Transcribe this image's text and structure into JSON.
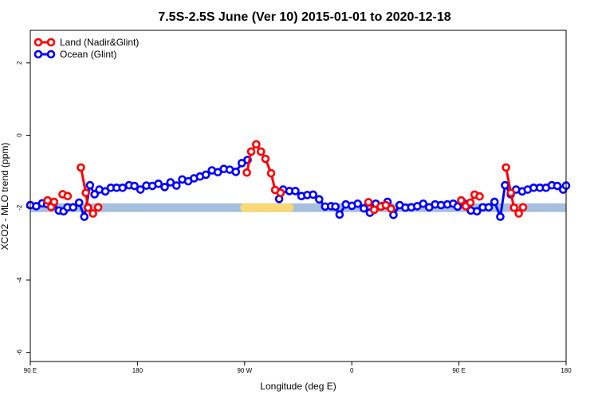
{
  "chart_data": {
    "type": "line",
    "title": "7.5S-2.5S June (Ver 10)   2015-01-01 to 2020-12-18",
    "xlabel": "Longitude (deg E)",
    "ylabel": "XCO2 - MLO trend (ppm)",
    "xlim": [
      90,
      450
    ],
    "ylim": [
      -6.25,
      2.9
    ],
    "x_ticks": [
      {
        "value": 90,
        "label": "90 E"
      },
      {
        "value": 162,
        "label": "180"
      },
      {
        "value": 234,
        "label": "90 W"
      },
      {
        "value": 306,
        "label": "0"
      },
      {
        "value": 378,
        "label": "90 E"
      },
      {
        "value": 450,
        "label": "180"
      }
    ],
    "y_ticks": [
      {
        "value": 2,
        "label": "2"
      },
      {
        "value": 0,
        "label": "0"
      },
      {
        "value": -2,
        "label": "-2"
      },
      {
        "value": -4,
        "label": "-4"
      },
      {
        "value": -6,
        "label": "-6"
      }
    ],
    "legend_position": "top-left",
    "band": {
      "y": -2.0,
      "color": "#a7bfdf",
      "highlight": {
        "x_start": 234,
        "x_end": 264,
        "color": "#f8d978"
      }
    },
    "series": [
      {
        "name": "Land (Nadir&Glint)",
        "color": "#ff0000",
        "segments": [
          [
            [
              101.6,
              -1.8
            ],
            [
              104.0,
              -1.98
            ],
            [
              106.0,
              -1.84
            ]
          ],
          [
            [
              111.7,
              -1.63
            ],
            [
              115.1,
              -1.68
            ]
          ],
          [
            [
              124.0,
              -0.89
            ],
            [
              127.3,
              -1.59
            ],
            [
              128.8,
              -2.0
            ],
            [
              132.1,
              -2.16
            ],
            [
              135.6,
              -1.99
            ]
          ],
          [
            [
              235.5,
              -1.03
            ],
            [
              238.4,
              -0.45
            ],
            [
              241.8,
              -0.25
            ],
            [
              245.0,
              -0.45
            ],
            [
              248.0,
              -0.65
            ],
            [
              251.8,
              -1.05
            ],
            [
              254.5,
              -1.51
            ],
            [
              258.2,
              -1.59
            ]
          ],
          [
            [
              317.2,
              -1.85
            ],
            [
              321.1,
              -2.06
            ],
            [
              325.4,
              -1.97
            ],
            [
              328.9,
              -1.93
            ],
            [
              332.4,
              -2.03
            ]
          ],
          [
            [
              379.5,
              -1.8
            ],
            [
              382.6,
              -1.96
            ],
            [
              385.7,
              -1.86
            ],
            [
              388.5,
              -1.64
            ],
            [
              391.9,
              -1.69
            ]
          ],
          [
            [
              409.6,
              -0.89
            ],
            [
              412.9,
              -1.59
            ],
            [
              415.0,
              -2.0
            ],
            [
              418.2,
              -2.16
            ],
            [
              421.1,
              -1.99
            ]
          ]
        ]
      },
      {
        "name": "Ocean (Glint)",
        "color": "#0000ff",
        "segments": [
          [
            [
              90.0,
              -1.93
            ],
            [
              94.0,
              -1.96
            ],
            [
              98.0,
              -1.88
            ],
            [
              101.3,
              -1.9
            ],
            [
              105.5,
              -1.88
            ],
            [
              109.2,
              -2.08
            ],
            [
              112.4,
              -2.1
            ],
            [
              115.0,
              -1.99
            ],
            [
              118.8,
              -1.99
            ],
            [
              122.8,
              -1.86
            ],
            [
              126.3,
              -2.25
            ],
            [
              130.1,
              -1.38
            ],
            [
              133.2,
              -1.63
            ],
            [
              136.4,
              -1.5
            ],
            [
              140.4,
              -1.55
            ],
            [
              144.1,
              -1.45
            ],
            [
              148.0,
              -1.45
            ],
            [
              152.0,
              -1.45
            ],
            [
              156.4,
              -1.38
            ],
            [
              160.0,
              -1.4
            ],
            [
              164.0,
              -1.5
            ],
            [
              168.0,
              -1.39
            ],
            [
              172.0,
              -1.4
            ],
            [
              176.1,
              -1.34
            ],
            [
              180.3,
              -1.43
            ],
            [
              184.2,
              -1.3
            ],
            [
              188.2,
              -1.39
            ],
            [
              192.1,
              -1.22
            ],
            [
              196.1,
              -1.27
            ],
            [
              200.0,
              -1.19
            ],
            [
              204.0,
              -1.14
            ],
            [
              208.0,
              -1.09
            ],
            [
              212.0,
              -0.97
            ],
            [
              216.0,
              -1.02
            ],
            [
              220.0,
              -0.93
            ],
            [
              224.0,
              -0.95
            ],
            [
              228.1,
              -1.01
            ],
            [
              232.1,
              -0.77
            ],
            [
              236.0,
              -0.68
            ]
          ],
          [
            [
              257.2,
              -1.76
            ],
            [
              259.9,
              -1.5
            ],
            [
              264.1,
              -1.54
            ],
            [
              268.1,
              -1.54
            ],
            [
              272.2,
              -1.68
            ],
            [
              276.1,
              -1.65
            ],
            [
              280.0,
              -1.64
            ],
            [
              284.1,
              -1.77
            ],
            [
              288.1,
              -1.97
            ],
            [
              292.1,
              -1.96
            ],
            [
              295.0,
              -1.97
            ],
            [
              297.8,
              -2.19
            ],
            [
              302.0,
              -1.91
            ],
            [
              306.1,
              -1.95
            ],
            [
              310.0,
              -1.89
            ],
            [
              314.1,
              -2.02
            ],
            [
              318.2,
              -2.14
            ],
            [
              322.1,
              -1.89
            ],
            [
              326.1,
              -1.96
            ],
            [
              330.0,
              -1.84
            ],
            [
              334.0,
              -2.2
            ],
            [
              338.2,
              -1.93
            ],
            [
              342.0,
              -2.0
            ],
            [
              346.0,
              -1.99
            ],
            [
              350.0,
              -1.96
            ],
            [
              354.0,
              -1.89
            ],
            [
              358.0,
              -1.99
            ],
            [
              362.0,
              -1.91
            ],
            [
              366.0,
              -1.93
            ],
            [
              370.2,
              -1.91
            ],
            [
              374.2,
              -1.89
            ],
            [
              377.1,
              -1.97
            ],
            [
              381.0,
              -1.87
            ],
            [
              386.0,
              -2.08
            ],
            [
              390.1,
              -2.1
            ],
            [
              394.0,
              -1.99
            ],
            [
              398.0,
              -1.99
            ],
            [
              401.9,
              -1.84
            ],
            [
              405.8,
              -2.25
            ],
            [
              409.0,
              -1.38
            ],
            [
              412.8,
              -1.63
            ],
            [
              416.4,
              -1.5
            ],
            [
              420.5,
              -1.55
            ],
            [
              424.2,
              -1.5
            ],
            [
              428.2,
              -1.45
            ],
            [
              432.4,
              -1.45
            ],
            [
              436.5,
              -1.45
            ],
            [
              440.4,
              -1.38
            ],
            [
              444.1,
              -1.4
            ],
            [
              448.0,
              -1.5
            ],
            [
              450.0,
              -1.39
            ]
          ]
        ]
      }
    ]
  }
}
